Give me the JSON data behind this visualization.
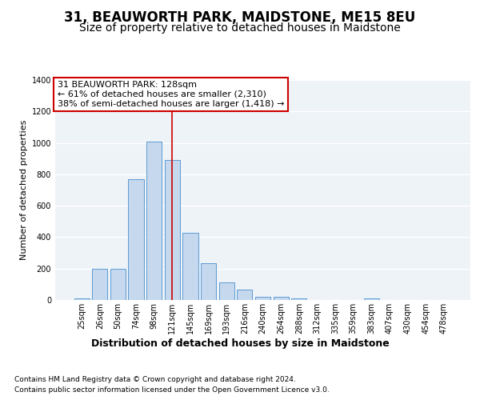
{
  "title": "31, BEAUWORTH PARK, MAIDSTONE, ME15 8EU",
  "subtitle": "Size of property relative to detached houses in Maidstone",
  "xlabel": "Distribution of detached houses by size in Maidstone",
  "ylabel": "Number of detached properties",
  "footnote1": "Contains HM Land Registry data © Crown copyright and database right 2024.",
  "footnote2": "Contains public sector information licensed under the Open Government Licence v3.0.",
  "categories": [
    "25sqm",
    "26sqm",
    "50sqm",
    "74sqm",
    "98sqm",
    "121sqm",
    "145sqm",
    "169sqm",
    "193sqm",
    "216sqm",
    "240sqm",
    "264sqm",
    "288sqm",
    "312sqm",
    "335sqm",
    "359sqm",
    "383sqm",
    "407sqm",
    "430sqm",
    "454sqm",
    "478sqm"
  ],
  "values": [
    10,
    200,
    200,
    770,
    1010,
    890,
    430,
    235,
    110,
    65,
    20,
    20,
    10,
    0,
    0,
    0,
    10,
    0,
    0,
    0,
    0
  ],
  "bar_color": "#c5d8ed",
  "bar_edge_color": "#5b9bd5",
  "highlight_index": 5,
  "highlight_line_color": "#cc0000",
  "annotation_text": "31 BEAUWORTH PARK: 128sqm\n← 61% of detached houses are smaller (2,310)\n38% of semi-detached houses are larger (1,418) →",
  "annotation_box_color": "#cc0000",
  "ylim": [
    0,
    1400
  ],
  "yticks": [
    0,
    200,
    400,
    600,
    800,
    1000,
    1200,
    1400
  ],
  "bg_color": "#eef3f8",
  "plot_bg_color": "#eef3f8",
  "grid_color": "#ffffff",
  "title_fontsize": 12,
  "subtitle_fontsize": 10,
  "xlabel_fontsize": 9,
  "ylabel_fontsize": 8,
  "tick_fontsize": 7,
  "annotation_fontsize": 8,
  "footnote_fontsize": 6.5
}
